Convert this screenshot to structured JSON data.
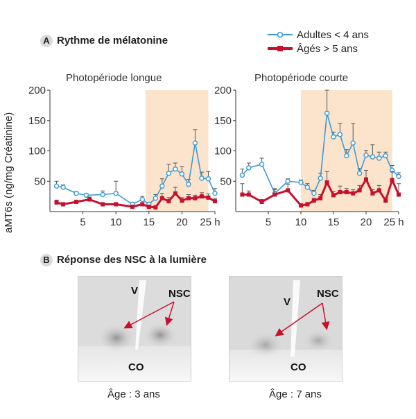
{
  "panel_a": {
    "letter": "A",
    "title": "Rythme de mélatonine"
  },
  "legend": [
    {
      "label": "Adultes < 4 ans",
      "color": "#3a9bd6",
      "marker": "circle"
    },
    {
      "label": "Âgés > 5 ans",
      "color": "#c8102e",
      "marker": "square"
    }
  ],
  "ylabel": "aMT6s (ng/mg Créatinine)",
  "colors": {
    "shade": "#fbe3cc",
    "blue": "#3a9bd6",
    "red": "#c8102e",
    "errbar": "#555555"
  },
  "chart_data": [
    {
      "type": "line",
      "title": "Photopériode longue",
      "xlabel": "h",
      "x_tick_labels": [
        "5",
        "10",
        "15",
        "20",
        "25 h"
      ],
      "x_ticks": [
        5,
        10,
        15,
        20,
        25
      ],
      "y_ticks": [
        50,
        100,
        150,
        200
      ],
      "xlim": [
        0,
        25
      ],
      "ylim": [
        0,
        200
      ],
      "shaded_region": [
        14.5,
        24
      ],
      "series": [
        {
          "name": "Adultes < 4 ans",
          "color": "#3a9bd6",
          "marker": "circle",
          "x": [
            1,
            2,
            4,
            5.5,
            8,
            10,
            12.5,
            14,
            15,
            16,
            17,
            18,
            19,
            20,
            21,
            22,
            23,
            24,
            25
          ],
          "y": [
            42,
            40,
            30,
            27,
            28,
            30,
            12,
            20,
            12,
            22,
            42,
            63,
            70,
            62,
            45,
            113,
            55,
            54,
            30
          ],
          "err": [
            8,
            4,
            3,
            3,
            6,
            20,
            3,
            5,
            3,
            6,
            12,
            15,
            10,
            12,
            8,
            22,
            10,
            12,
            8
          ]
        },
        {
          "name": "Âgés > 5 ans",
          "color": "#c8102e",
          "marker": "square",
          "x": [
            1,
            2,
            4,
            6,
            8,
            10,
            12.5,
            14,
            15,
            16,
            17,
            18,
            19,
            20,
            21,
            22,
            23,
            24,
            25
          ],
          "y": [
            15,
            12,
            16,
            20,
            12,
            12,
            8,
            12,
            8,
            7,
            22,
            17,
            30,
            18,
            22,
            22,
            25,
            23,
            17
          ],
          "err": [
            4,
            3,
            3,
            4,
            3,
            3,
            2,
            3,
            2,
            2,
            8,
            6,
            10,
            5,
            6,
            5,
            6,
            6,
            5
          ]
        }
      ]
    },
    {
      "type": "line",
      "title": "Photopériode courte",
      "xlabel": "h",
      "x_tick_labels": [
        "5",
        "10",
        "15",
        "20",
        "25 h"
      ],
      "x_ticks": [
        5,
        10,
        15,
        20,
        25
      ],
      "y_ticks": [
        50,
        100,
        150,
        200
      ],
      "xlim": [
        0,
        25
      ],
      "ylim": [
        0,
        200
      ],
      "shaded_region": [
        10,
        24
      ],
      "series": [
        {
          "name": "Adultes < 4 ans",
          "color": "#3a9bd6",
          "marker": "circle",
          "x": [
            1,
            2,
            4,
            6,
            8,
            10,
            11,
            12,
            13,
            14,
            15,
            16,
            17,
            18,
            19,
            20,
            21,
            22,
            23,
            24,
            25
          ],
          "y": [
            60,
            72,
            78,
            30,
            50,
            48,
            40,
            30,
            55,
            162,
            123,
            127,
            92,
            113,
            63,
            93,
            90,
            88,
            92,
            68,
            58
          ],
          "err": [
            10,
            8,
            10,
            8,
            4,
            4,
            6,
            5,
            8,
            38,
            8,
            18,
            10,
            32,
            8,
            8,
            20,
            10,
            6,
            8,
            6
          ]
        },
        {
          "name": "Âgés > 5 ans",
          "color": "#c8102e",
          "marker": "square",
          "x": [
            1,
            2,
            4,
            6,
            8,
            10,
            11,
            12,
            13,
            14,
            15,
            16,
            17,
            18,
            19,
            20,
            21,
            22,
            23,
            24,
            25
          ],
          "y": [
            28,
            28,
            16,
            28,
            35,
            10,
            12,
            18,
            22,
            48,
            27,
            32,
            32,
            30,
            35,
            53,
            30,
            35,
            18,
            52,
            28
          ],
          "err": [
            18,
            6,
            4,
            8,
            10,
            3,
            3,
            4,
            6,
            18,
            6,
            10,
            6,
            6,
            8,
            15,
            6,
            8,
            5,
            14,
            18
          ]
        }
      ]
    }
  ],
  "panel_b": {
    "letter": "B",
    "title": "Réponse des NSC à la lumière"
  },
  "micrographs": [
    {
      "v_label": "V",
      "nsc_label": "NSC",
      "co_label": "CO",
      "caption": "Âge : 3 ans"
    },
    {
      "v_label": "V",
      "nsc_label": "NSC",
      "co_label": "CO",
      "caption": "Âge : 7 ans"
    }
  ]
}
